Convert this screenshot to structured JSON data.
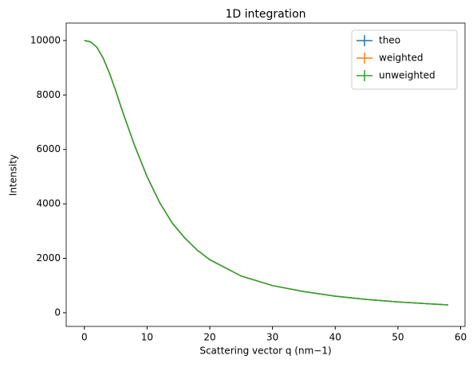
{
  "chart_data": {
    "type": "line",
    "title": "1D integration",
    "xlabel": "Scattering vector q (nm−1)",
    "ylabel": "Intensity",
    "x": [
      0,
      1,
      2,
      3,
      4,
      5,
      6,
      7,
      8,
      10,
      12,
      14,
      16,
      18,
      20,
      25,
      30,
      35,
      40,
      45,
      50,
      55,
      58
    ],
    "series": [
      {
        "name": "theo",
        "color": "#1f77b4",
        "values": [
          10000,
          9950,
          9750,
          9350,
          8800,
          8150,
          7450,
          6800,
          6150,
          5000,
          4050,
          3300,
          2750,
          2300,
          1950,
          1350,
          1000,
          780,
          610,
          490,
          400,
          330,
          290
        ]
      },
      {
        "name": "weighted",
        "color": "#ff7f0e",
        "values": [
          10000,
          9950,
          9750,
          9350,
          8800,
          8150,
          7450,
          6800,
          6150,
          5000,
          4050,
          3300,
          2750,
          2300,
          1950,
          1350,
          1000,
          780,
          610,
          490,
          400,
          330,
          290
        ]
      },
      {
        "name": "unweighted",
        "color": "#2ca02c",
        "values": [
          10000,
          9950,
          9750,
          9350,
          8800,
          8150,
          7450,
          6800,
          6150,
          5000,
          4050,
          3300,
          2750,
          2300,
          1950,
          1350,
          1000,
          780,
          610,
          490,
          400,
          330,
          290
        ]
      }
    ],
    "xlim": [
      -2.9,
      60.7
    ],
    "xticks": [
      0,
      10,
      20,
      30,
      40,
      50,
      60
    ],
    "ylim": [
      -500,
      10640
    ],
    "yticks": [
      0,
      2000,
      4000,
      6000,
      8000,
      10000
    ],
    "legend": "upper right"
  }
}
